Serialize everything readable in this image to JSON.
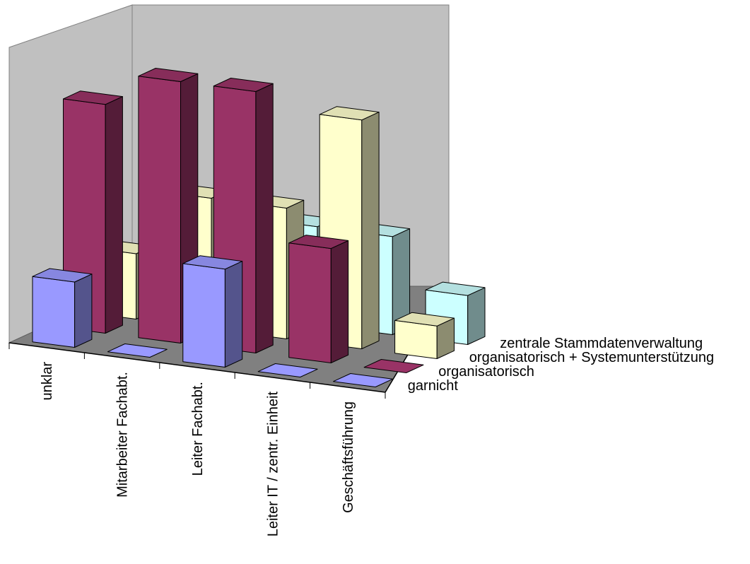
{
  "chart_data": {
    "type": "bar",
    "categories": [
      "unklar",
      "Mitarbeiter Fachabt.",
      "Leiter Fachabt.",
      "Leiter IT / zentr. Einheit",
      "Geschäftsführung"
    ],
    "series": [
      {
        "name": "garnicht",
        "values": [
          2,
          0,
          3,
          0,
          0
        ],
        "color": "#9999ff"
      },
      {
        "name": "organisatorisch",
        "values": [
          7,
          8,
          8,
          3.5,
          0
        ],
        "color": "#993366"
      },
      {
        "name": "organisatorisch + Systemunterstützung",
        "values": [
          2,
          4,
          4,
          7,
          1
        ],
        "color": "#ffffcc"
      },
      {
        "name": "zentrale Stammdatenverwaltung",
        "values": [
          0,
          0,
          3,
          3,
          1.5
        ],
        "color": "#ccffff"
      }
    ],
    "grid": false,
    "legend": "none"
  }
}
